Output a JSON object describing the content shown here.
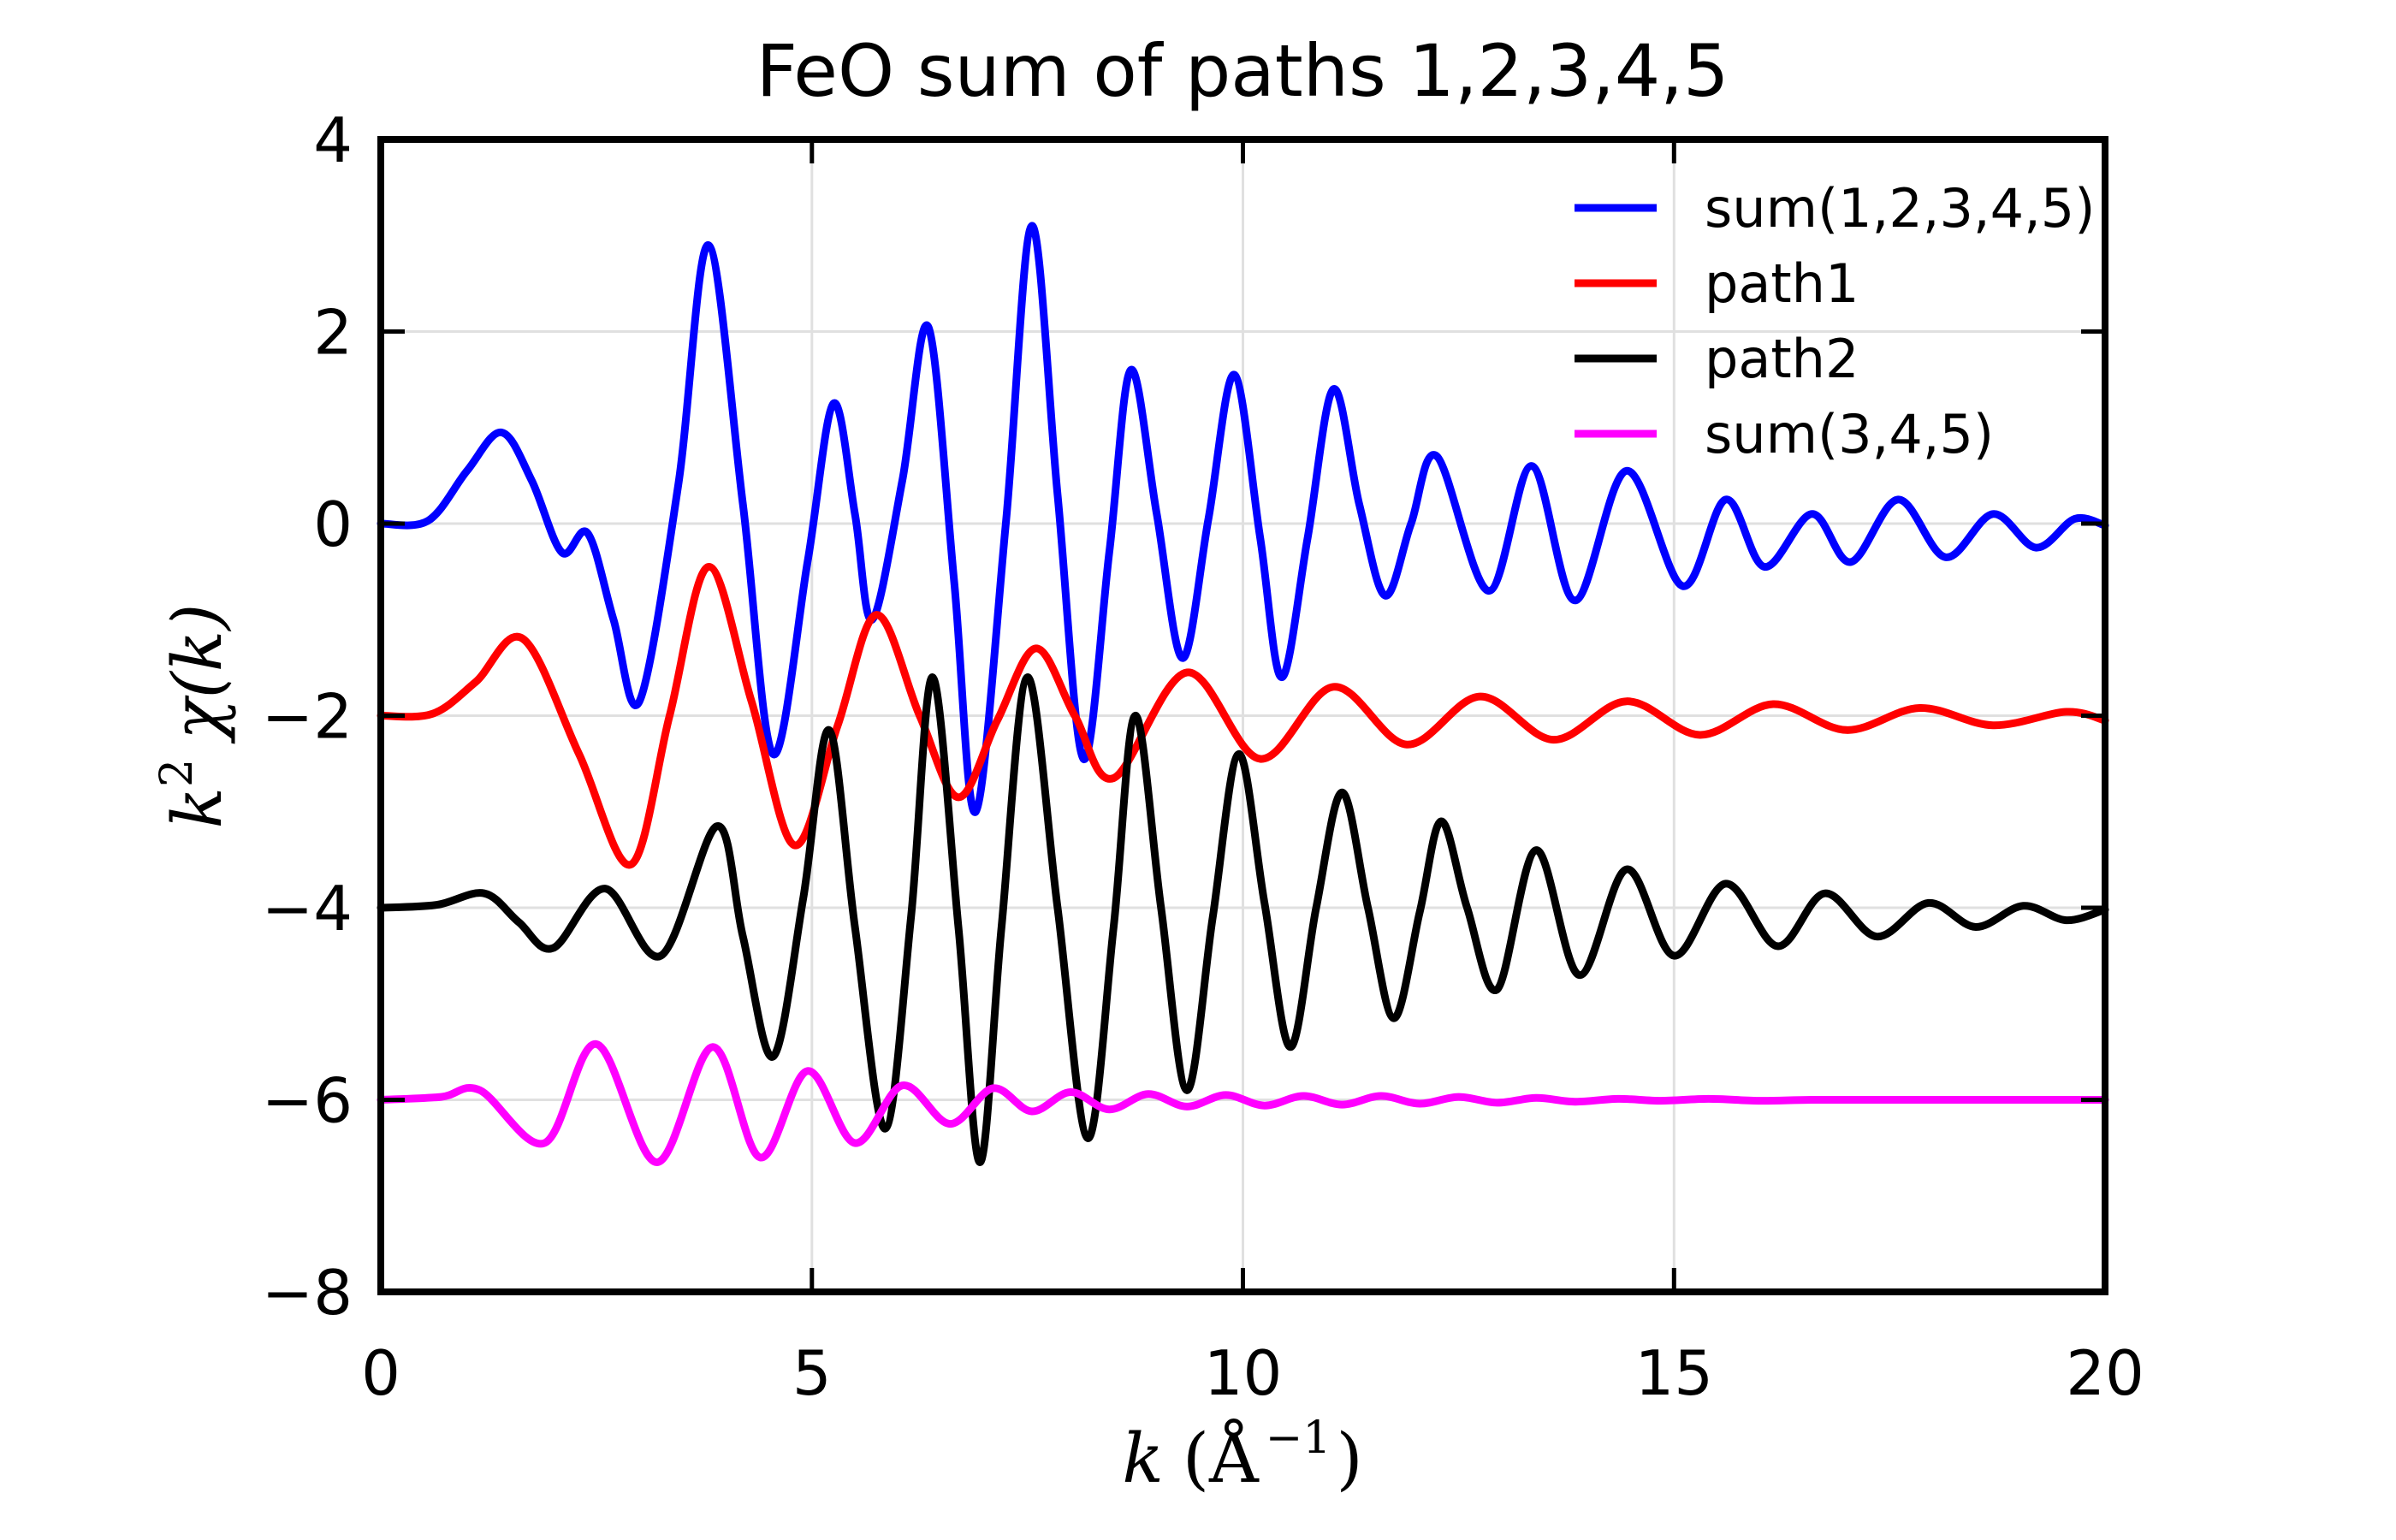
{
  "title": "FeO sum of paths 1,2,3,4,5",
  "axes": {
    "xlabel": {
      "variable": "k",
      "unit_open": "(Å",
      "exponent": "−1",
      "unit_close": ")"
    },
    "ylabel": {
      "variable": "k",
      "exponent": "2",
      "rest": "χ(k)"
    },
    "x_ticks": {
      "values": [
        0,
        5,
        10,
        15,
        20
      ],
      "labels": [
        "0",
        "5",
        "10",
        "15",
        "20"
      ]
    },
    "y_ticks": {
      "values": [
        4,
        2,
        0,
        -2,
        -4,
        -6,
        -8
      ],
      "labels": [
        "4",
        "2",
        "0",
        "−2",
        "−4",
        "−6",
        "−8"
      ]
    }
  },
  "legend": {
    "location": "upper right",
    "entries": [
      {
        "label": "sum(1,2,3,4,5)",
        "color": "#0000ff"
      },
      {
        "label": "path1",
        "color": "#ff0000"
      },
      {
        "label": "path2",
        "color": "#000000"
      },
      {
        "label": "sum(3,4,5)",
        "color": "#ff00ff"
      }
    ]
  },
  "colors": {
    "grid": "#e0e0e0",
    "frame": "#000000",
    "background": "#ffffff"
  },
  "chart_data": {
    "type": "line",
    "title": "FeO sum of paths 1,2,3,4,5",
    "xlabel": "k (Å^-1)",
    "ylabel": "k^2 χ(k)",
    "xlim": [
      0,
      20
    ],
    "ylim": [
      -8,
      4
    ],
    "grid": true,
    "x_gridlines": [
      5,
      10,
      15
    ],
    "y_gridlines": [
      2,
      0,
      -2,
      -4,
      -6
    ],
    "line_width": 9,
    "series": [
      {
        "name": "sum(1,2,3,4,5)",
        "color": "#0000ff",
        "baseline_offset": 0,
        "points": [
          [
            0,
            0
          ],
          [
            0.55,
            0.03
          ],
          [
            1.0,
            0.55
          ],
          [
            1.4,
            0.95
          ],
          [
            1.75,
            0.45
          ],
          [
            2.1,
            -0.3
          ],
          [
            2.4,
            -0.1
          ],
          [
            2.7,
            -1.0
          ],
          [
            3.0,
            -1.85
          ],
          [
            3.45,
            0.4
          ],
          [
            3.8,
            2.9
          ],
          [
            4.2,
            0.2
          ],
          [
            4.55,
            -2.4
          ],
          [
            4.95,
            -0.4
          ],
          [
            5.25,
            1.25
          ],
          [
            5.5,
            0.1
          ],
          [
            5.7,
            -1.0
          ],
          [
            6.05,
            0.45
          ],
          [
            6.35,
            2.05
          ],
          [
            6.65,
            -0.6
          ],
          [
            6.9,
            -3.0
          ],
          [
            7.25,
            0.0
          ],
          [
            7.55,
            3.1
          ],
          [
            7.85,
            0.3
          ],
          [
            8.15,
            -2.45
          ],
          [
            8.45,
            -0.3
          ],
          [
            8.7,
            1.6
          ],
          [
            9.0,
            0.1
          ],
          [
            9.3,
            -1.4
          ],
          [
            9.6,
            0.05
          ],
          [
            9.9,
            1.55
          ],
          [
            10.2,
            -0.15
          ],
          [
            10.45,
            -1.6
          ],
          [
            10.75,
            -0.15
          ],
          [
            11.05,
            1.4
          ],
          [
            11.35,
            0.2
          ],
          [
            11.65,
            -0.75
          ],
          [
            11.95,
            0.0
          ],
          [
            12.25,
            0.7
          ],
          [
            12.85,
            -0.7
          ],
          [
            13.35,
            0.6
          ],
          [
            13.85,
            -0.8
          ],
          [
            14.45,
            0.55
          ],
          [
            15.1,
            -0.65
          ],
          [
            15.6,
            0.25
          ],
          [
            16.05,
            -0.45
          ],
          [
            16.6,
            0.1
          ],
          [
            17.05,
            -0.4
          ],
          [
            17.6,
            0.25
          ],
          [
            18.15,
            -0.35
          ],
          [
            18.7,
            0.1
          ],
          [
            19.2,
            -0.25
          ],
          [
            19.65,
            0.05
          ],
          [
            20,
            -0.02
          ]
        ]
      },
      {
        "name": "path1",
        "color": "#ff0000",
        "baseline_offset": -2,
        "points": [
          [
            0,
            -2
          ],
          [
            0.6,
            -1.98
          ],
          [
            1.1,
            -1.65
          ],
          [
            1.65,
            -1.2
          ],
          [
            2.3,
            -2.4
          ],
          [
            2.9,
            -3.55
          ],
          [
            3.35,
            -2.0
          ],
          [
            3.8,
            -0.45
          ],
          [
            4.3,
            -1.85
          ],
          [
            4.8,
            -3.35
          ],
          [
            5.3,
            -2.1
          ],
          [
            5.75,
            -0.95
          ],
          [
            6.25,
            -2.0
          ],
          [
            6.7,
            -2.85
          ],
          [
            7.15,
            -2.05
          ],
          [
            7.6,
            -1.3
          ],
          [
            8.05,
            -2.0
          ],
          [
            8.5,
            -2.65
          ],
          [
            9.35,
            -1.55
          ],
          [
            10.2,
            -2.45
          ],
          [
            11.05,
            -1.7
          ],
          [
            11.9,
            -2.3
          ],
          [
            12.75,
            -1.8
          ],
          [
            13.6,
            -2.25
          ],
          [
            14.45,
            -1.85
          ],
          [
            15.3,
            -2.2
          ],
          [
            16.15,
            -1.88
          ],
          [
            17.0,
            -2.15
          ],
          [
            17.85,
            -1.92
          ],
          [
            18.7,
            -2.1
          ],
          [
            19.55,
            -1.96
          ],
          [
            20,
            -2.05
          ]
        ]
      },
      {
        "name": "path2",
        "color": "#000000",
        "baseline_offset": -4,
        "points": [
          [
            0,
            -4
          ],
          [
            0.65,
            -3.97
          ],
          [
            1.2,
            -3.85
          ],
          [
            1.6,
            -4.15
          ],
          [
            2.0,
            -4.42
          ],
          [
            2.6,
            -3.8
          ],
          [
            3.25,
            -4.5
          ],
          [
            3.9,
            -3.15
          ],
          [
            4.2,
            -4.3
          ],
          [
            4.55,
            -5.55
          ],
          [
            4.9,
            -3.9
          ],
          [
            5.2,
            -2.15
          ],
          [
            5.5,
            -4.2
          ],
          [
            5.85,
            -6.3
          ],
          [
            6.15,
            -4.1
          ],
          [
            6.4,
            -1.6
          ],
          [
            6.7,
            -4.2
          ],
          [
            6.95,
            -6.65
          ],
          [
            7.2,
            -4.2
          ],
          [
            7.5,
            -1.6
          ],
          [
            7.85,
            -4.0
          ],
          [
            8.2,
            -6.4
          ],
          [
            8.5,
            -4.2
          ],
          [
            8.75,
            -2.0
          ],
          [
            9.05,
            -4.0
          ],
          [
            9.35,
            -5.9
          ],
          [
            9.65,
            -4.1
          ],
          [
            9.95,
            -2.4
          ],
          [
            10.25,
            -3.95
          ],
          [
            10.55,
            -5.45
          ],
          [
            10.85,
            -4.0
          ],
          [
            11.15,
            -2.8
          ],
          [
            11.45,
            -4.0
          ],
          [
            11.75,
            -5.15
          ],
          [
            12.05,
            -4.05
          ],
          [
            12.3,
            -3.1
          ],
          [
            12.6,
            -4.0
          ],
          [
            12.95,
            -4.85
          ],
          [
            13.4,
            -3.4
          ],
          [
            13.9,
            -4.7
          ],
          [
            14.45,
            -3.6
          ],
          [
            15.0,
            -4.5
          ],
          [
            15.6,
            -3.75
          ],
          [
            16.2,
            -4.4
          ],
          [
            16.75,
            -3.85
          ],
          [
            17.35,
            -4.3
          ],
          [
            17.95,
            -3.95
          ],
          [
            18.5,
            -4.2
          ],
          [
            19.05,
            -3.98
          ],
          [
            19.55,
            -4.13
          ],
          [
            20,
            -4.02
          ]
        ]
      },
      {
        "name": "sum(3,4,5)",
        "color": "#ff00ff",
        "baseline_offset": -6,
        "points": [
          [
            0,
            -6
          ],
          [
            0.7,
            -5.97
          ],
          [
            1.15,
            -5.9
          ],
          [
            1.9,
            -6.45
          ],
          [
            2.5,
            -5.42
          ],
          [
            3.2,
            -6.65
          ],
          [
            3.85,
            -5.45
          ],
          [
            4.4,
            -6.6
          ],
          [
            4.95,
            -5.7
          ],
          [
            5.5,
            -6.45
          ],
          [
            6.05,
            -5.85
          ],
          [
            6.6,
            -6.25
          ],
          [
            7.1,
            -5.88
          ],
          [
            7.55,
            -6.12
          ],
          [
            8.0,
            -5.92
          ],
          [
            8.45,
            -6.1
          ],
          [
            8.9,
            -5.94
          ],
          [
            9.35,
            -6.07
          ],
          [
            9.8,
            -5.95
          ],
          [
            10.25,
            -6.06
          ],
          [
            10.7,
            -5.96
          ],
          [
            11.15,
            -6.05
          ],
          [
            11.6,
            -5.96
          ],
          [
            12.05,
            -6.04
          ],
          [
            12.5,
            -5.97
          ],
          [
            12.95,
            -6.03
          ],
          [
            13.4,
            -5.98
          ],
          [
            13.85,
            -6.02
          ],
          [
            14.35,
            -5.99
          ],
          [
            14.85,
            -6.01
          ],
          [
            15.4,
            -5.99
          ],
          [
            16.0,
            -6.01
          ],
          [
            16.6,
            -6.0
          ],
          [
            17.5,
            -6.0
          ],
          [
            18.5,
            -6.0
          ],
          [
            19.25,
            -6.0
          ],
          [
            20,
            -6.0
          ]
        ]
      }
    ]
  }
}
